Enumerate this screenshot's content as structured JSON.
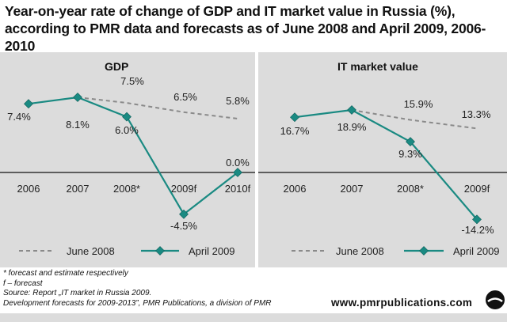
{
  "title_line1": "Year-on-year rate of change of GDP and IT market value in Russia (%),",
  "title_line2": "according to PMR data and forecasts as of June 2008 and April 2009, 2006-2010",
  "footnotes": [
    "* forecast and estimate respectively",
    "f – forecast",
    "Source: Report „IT market in Russia 2009.",
    "Development forecasts for 2009-2013”, PMR Publications, a division of PMR"
  ],
  "brand": "www.pmrpublications.com",
  "colors": {
    "panel_bg": "#dcdcdc",
    "april_2009": "#1a8a82",
    "june_2008": "#8a8a8a"
  },
  "chart_data": [
    {
      "type": "line",
      "title": "GDP",
      "categories": [
        "2006",
        "2007",
        "2008*",
        "2009f",
        "2010f"
      ],
      "series": [
        {
          "name": "June 2008",
          "style": "dashed",
          "values": [
            null,
            8.1,
            7.5,
            6.5,
            5.8
          ]
        },
        {
          "name": "April 2009",
          "style": "solid-diamond",
          "values": [
            7.4,
            8.1,
            6.0,
            -4.5,
            0.0
          ]
        }
      ],
      "labels": {
        "june": [
          "7.5%",
          "6.5%",
          "5.8%"
        ],
        "april": [
          "7.4%",
          "8.1%",
          "6.0%",
          "-4.5%",
          "0.0%"
        ]
      },
      "legend": [
        "June 2008",
        "April 2009"
      ],
      "legend_position": "bottom"
    },
    {
      "type": "line",
      "title": "IT market value",
      "categories": [
        "2006",
        "2007",
        "2008*",
        "2009f"
      ],
      "series": [
        {
          "name": "June 2008",
          "style": "dashed",
          "values": [
            null,
            18.9,
            15.9,
            13.3
          ]
        },
        {
          "name": "April 2009",
          "style": "solid-diamond",
          "values": [
            16.7,
            18.9,
            9.3,
            -14.2
          ]
        }
      ],
      "labels": {
        "june": [
          "15.9%",
          "13.3%"
        ],
        "april": [
          "16.7%",
          "18.9%",
          "9.3%",
          "-14.2%"
        ]
      },
      "legend": [
        "June 2008",
        "April 2009"
      ],
      "legend_position": "bottom"
    }
  ]
}
